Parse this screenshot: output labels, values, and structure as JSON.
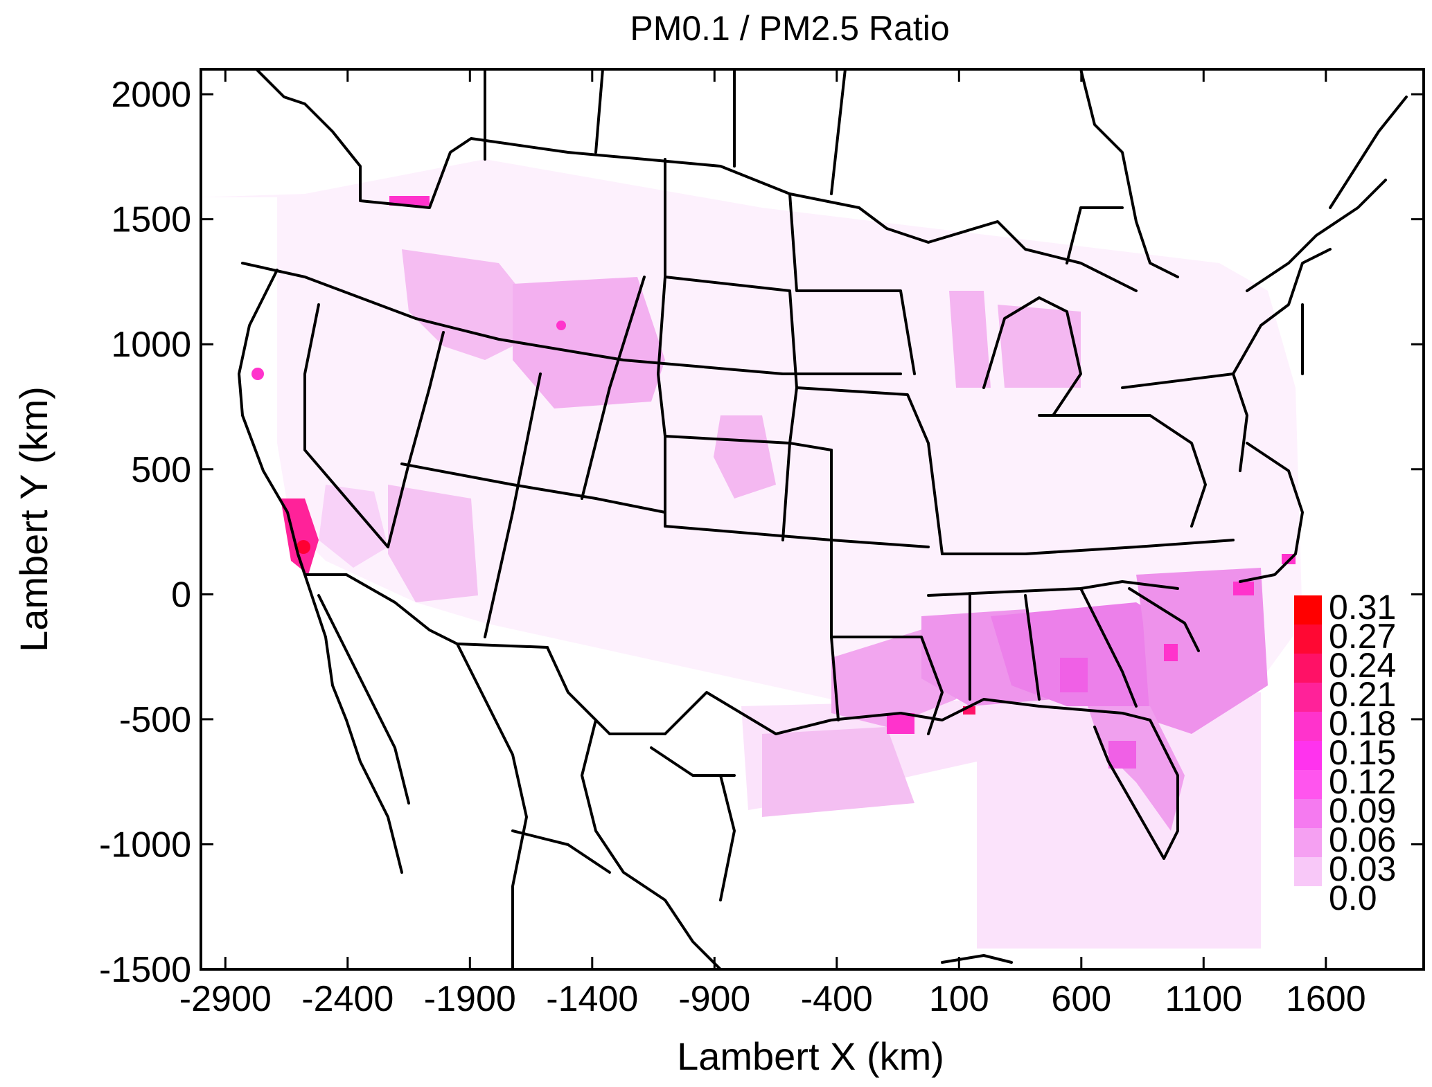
{
  "title": "PM0.1 / PM2.5 Ratio",
  "x_axis": {
    "label": "Lambert X (km)",
    "range": [
      -3000,
      2000
    ],
    "ticks": [
      -2900,
      -2400,
      -1900,
      -1400,
      -900,
      -400,
      100,
      600,
      1100,
      1600
    ]
  },
  "y_axis": {
    "label": "Lambert Y (km)",
    "range": [
      -1500,
      2100
    ],
    "ticks": [
      2000,
      1500,
      1000,
      500,
      0,
      -500,
      -1000,
      -1500
    ]
  },
  "colorbar": {
    "labels": [
      "0.31",
      "0.27",
      "0.24",
      "0.21",
      "0.18",
      "0.15",
      "0.12",
      "0.09",
      "0.06",
      "0.03",
      "0.0"
    ],
    "colors": [
      "#ff0000",
      "#ff0833",
      "#ff1166",
      "#ff2299",
      "#ff33cc",
      "#ff33ee",
      "#ff55ee",
      "#f57af0",
      "#f5a0f2",
      "#f8c8f8",
      "#ffffff"
    ]
  },
  "map": {
    "type": "heatmap",
    "description_colors": {
      "background": "#ffffff",
      "low": "#fbe6fb",
      "mid": "#f2a6ef",
      "high": "#ff33cc",
      "max": "#ff0044"
    }
  }
}
